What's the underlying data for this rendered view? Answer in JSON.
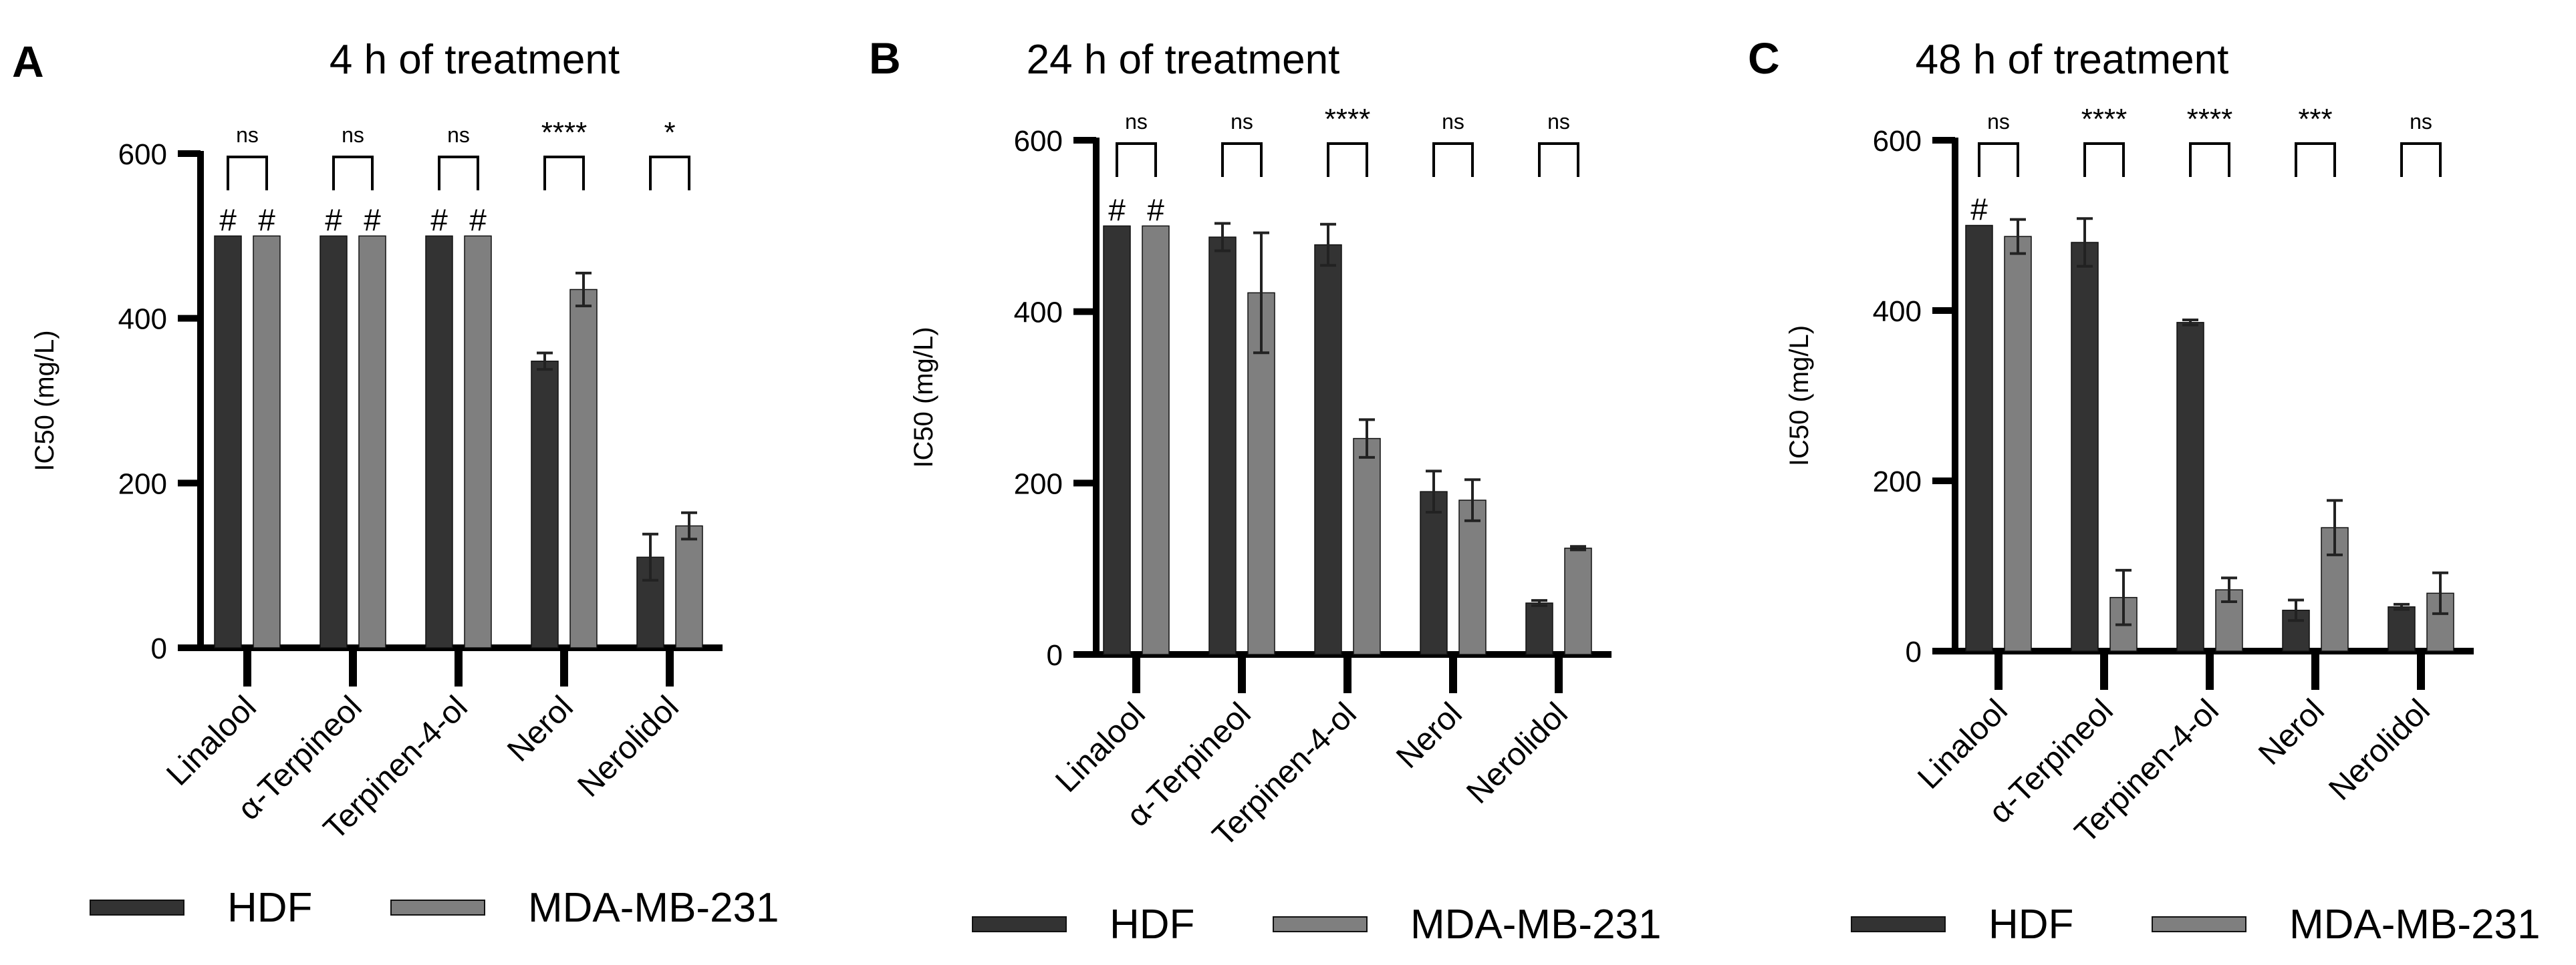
{
  "chart_data": [
    {
      "panel_label": "A",
      "type": "bar",
      "title": "4 h of treatment",
      "ylabel": "IC50 (mg/L)",
      "ylim": [
        0,
        600
      ],
      "yticks": [
        "0",
        "200",
        "400",
        "600"
      ],
      "categories": [
        "Linalool",
        "α-Terpineol",
        "Terpinen-4-ol",
        "Nerol",
        "Nerolidol"
      ],
      "series": [
        {
          "name": "HDF",
          "values": [
            500,
            500,
            500,
            348,
            110
          ],
          "errors": [
            0,
            0,
            0,
            10,
            28
          ]
        },
        {
          "name": "MDA-MB-231",
          "values": [
            500,
            500,
            500,
            435,
            148
          ],
          "errors": [
            0,
            0,
            0,
            20,
            16
          ]
        }
      ],
      "markers": [
        [
          "#",
          "#"
        ],
        [
          "#",
          "#"
        ],
        [
          "#",
          "#"
        ],
        [
          "",
          ""
        ],
        [
          "",
          ""
        ]
      ],
      "significance": [
        "ns",
        "ns",
        "ns",
        "****",
        "*"
      ]
    },
    {
      "panel_label": "B",
      "type": "bar",
      "title": "24 h of treatment",
      "ylabel": "IC50 (mg/L)",
      "ylim": [
        0,
        600
      ],
      "yticks": [
        "0",
        "200",
        "400",
        "600"
      ],
      "categories": [
        "Linalool",
        "α-Terpineol",
        "Terpinen-4-ol",
        "Nerol",
        "Nerolidol"
      ],
      "series": [
        {
          "name": "HDF",
          "values": [
            500,
            487,
            478,
            190,
            60
          ],
          "errors": [
            0,
            16,
            24,
            24,
            3
          ]
        },
        {
          "name": "MDA-MB-231",
          "values": [
            500,
            422,
            252,
            180,
            124
          ],
          "errors": [
            0,
            70,
            22,
            24,
            2
          ]
        }
      ],
      "markers": [
        [
          "#",
          "#"
        ],
        [
          "",
          ""
        ],
        [
          "",
          ""
        ],
        [
          "",
          ""
        ],
        [
          "",
          ""
        ]
      ],
      "significance": [
        "ns",
        "ns",
        "****",
        "ns",
        "ns"
      ]
    },
    {
      "panel_label": "C",
      "type": "bar",
      "title": "48 h of treatment",
      "ylabel": "IC50 (mg/L)",
      "ylim": [
        0,
        600
      ],
      "yticks": [
        "0",
        "200",
        "400",
        "600"
      ],
      "categories": [
        "Linalool",
        "α-Terpineol",
        "Terpinen-4-ol",
        "Nerol",
        "Nerolidol"
      ],
      "series": [
        {
          "name": "HDF",
          "values": [
            500,
            480,
            386,
            48,
            52
          ],
          "errors": [
            0,
            28,
            3,
            12,
            3
          ]
        },
        {
          "name": "MDA-MB-231",
          "values": [
            487,
            63,
            72,
            145,
            68
          ],
          "errors": [
            20,
            32,
            14,
            32,
            24
          ]
        }
      ],
      "markers": [
        [
          "#",
          ""
        ],
        [
          "",
          ""
        ],
        [
          "",
          ""
        ],
        [
          "",
          ""
        ],
        [
          "",
          ""
        ]
      ],
      "significance": [
        "ns",
        "****",
        "****",
        "***",
        "ns"
      ]
    }
  ],
  "legend": {
    "items": [
      {
        "label": "HDF"
      },
      {
        "label": "MDA-MB-231"
      }
    ]
  },
  "colors": {
    "HDF": "#333333",
    "MDA-MB-231": "#7f7f7f",
    "axis": "#000000"
  }
}
